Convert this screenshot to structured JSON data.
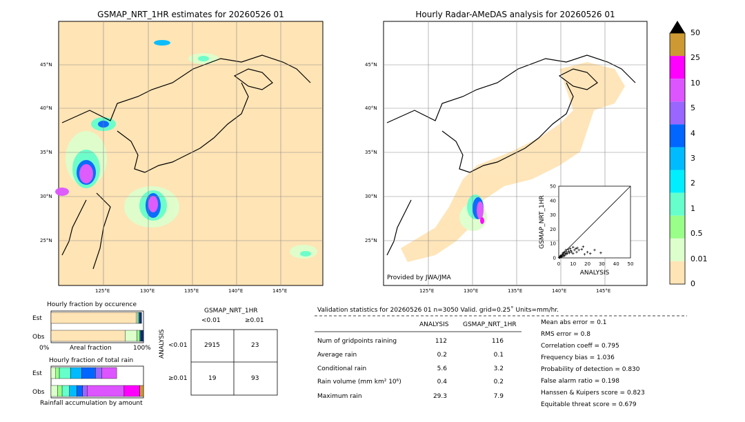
{
  "left_map": {
    "title": "GSMAP_NRT_1HR estimates for 20260526 01",
    "lat_ticks": [
      "45°N",
      "40°N",
      "35°N",
      "30°N",
      "25°N"
    ],
    "lon_ticks": [
      "125°E",
      "130°E",
      "135°E",
      "140°E",
      "145°E"
    ]
  },
  "right_map": {
    "title": "Hourly Radar-AMeDAS analysis for 20260526 01",
    "lat_ticks": [
      "45°N",
      "40°N",
      "35°N",
      "30°N",
      "25°N"
    ],
    "lon_ticks": [
      "125°E",
      "130°E",
      "135°E",
      "140°E",
      "145°E"
    ],
    "credit": "Provided by JWA/JMA"
  },
  "colorbar": {
    "labels": [
      "50",
      "25",
      "10",
      "5",
      "4",
      "3",
      "2",
      "1",
      "0.5",
      "0.01",
      "0"
    ],
    "colors": [
      "#cc9933",
      "#ff00ff",
      "#dd55ff",
      "#9966ff",
      "#0066ff",
      "#00bbff",
      "#00eeff",
      "#66ffcc",
      "#99ff88",
      "#ddffcc",
      "#ffe4b5"
    ],
    "extend_color": "#000000"
  },
  "chart_data": [
    {
      "type": "scatter",
      "title": "",
      "xlabel": "ANALYSIS",
      "ylabel": "GSMAP_NRT_1HR",
      "xlim": [
        0,
        50
      ],
      "ylim": [
        0,
        50
      ],
      "ticks": [
        "0",
        "10",
        "20",
        "30",
        "40",
        "50"
      ],
      "points": [
        [
          0.3,
          0.2
        ],
        [
          0.5,
          0.4
        ],
        [
          0.8,
          0.3
        ],
        [
          1,
          0.9
        ],
        [
          1.2,
          1.5
        ],
        [
          1.5,
          0.6
        ],
        [
          2,
          1.8
        ],
        [
          2.2,
          0.9
        ],
        [
          2.5,
          2.5
        ],
        [
          3,
          1.2
        ],
        [
          3,
          3.5
        ],
        [
          3.5,
          2.2
        ],
        [
          4,
          1.5
        ],
        [
          4,
          4.2
        ],
        [
          4.5,
          3
        ],
        [
          5,
          2.5
        ],
        [
          5,
          5.5
        ],
        [
          5.5,
          4
        ],
        [
          6,
          3
        ],
        [
          6.5,
          6
        ],
        [
          7,
          4.5
        ],
        [
          7.5,
          3.5
        ],
        [
          8,
          6.5
        ],
        [
          8.5,
          5
        ],
        [
          9,
          4
        ],
        [
          10,
          7.5
        ],
        [
          10,
          3
        ],
        [
          11,
          5.5
        ],
        [
          12,
          6.5
        ],
        [
          12.5,
          4
        ],
        [
          13,
          7
        ],
        [
          14,
          5.5
        ],
        [
          16,
          6
        ],
        [
          17,
          7.8
        ],
        [
          18,
          2.5
        ],
        [
          20,
          4
        ],
        [
          22,
          3
        ],
        [
          25,
          5.5
        ],
        [
          29.3,
          3.5
        ]
      ],
      "diagonal": true
    },
    {
      "type": "bar",
      "title": "Hourly fraction by occurence",
      "stacked": true,
      "categories": [
        "Est",
        "Obs"
      ],
      "xlabel": "Areal fraction",
      "x_tick_left": "0%",
      "x_tick_right": "100%",
      "segments": {
        "Est": [
          {
            "color": "#ffe4b5",
            "value": 0.92
          },
          {
            "color": "#ddffcc",
            "value": 0.02
          },
          {
            "color": "#99ff88",
            "value": 0.01
          },
          {
            "color": "#00bbff",
            "value": 0.01
          },
          {
            "color": "#1a2a6c",
            "value": 0.02
          }
        ],
        "Obs": [
          {
            "color": "#ffe4b5",
            "value": 0.8
          },
          {
            "color": "#ddffcc",
            "value": 0.13
          },
          {
            "color": "#99ff88",
            "value": 0.03
          },
          {
            "color": "#00bbff",
            "value": 0.01
          },
          {
            "color": "#1a2a6c",
            "value": 0.03
          }
        ]
      }
    },
    {
      "type": "bar",
      "title": "Hourly fraction of total rain",
      "stacked": true,
      "categories": [
        "Est",
        "Obs"
      ],
      "xlabel": "Rainfall accumulation by amount",
      "segments": {
        "Est": [
          {
            "color": "#ddffcc",
            "value": 0.05
          },
          {
            "color": "#99ff88",
            "value": 0.04
          },
          {
            "color": "#66ffcc",
            "value": 0.12
          },
          {
            "color": "#00bbff",
            "value": 0.12
          },
          {
            "color": "#0066ff",
            "value": 0.15
          },
          {
            "color": "#9966ff",
            "value": 0.07
          },
          {
            "color": "#dd55ff",
            "value": 0.16
          }
        ],
        "Obs": [
          {
            "color": "#ddffcc",
            "value": 0.07
          },
          {
            "color": "#99ff88",
            "value": 0.05
          },
          {
            "color": "#66ffcc",
            "value": 0.08
          },
          {
            "color": "#00bbff",
            "value": 0.08
          },
          {
            "color": "#0066ff",
            "value": 0.06
          },
          {
            "color": "#9966ff",
            "value": 0.05
          },
          {
            "color": "#dd55ff",
            "value": 0.4
          },
          {
            "color": "#ff00ff",
            "value": 0.17
          },
          {
            "color": "#cc9933",
            "value": 0.04
          }
        ]
      }
    },
    {
      "type": "table",
      "title": "GSMAP_NRT_1HR",
      "col_labels": [
        "<0.01",
        "≥0.01"
      ],
      "row_title": "ANALYSIS",
      "row_labels": [
        "<0.01",
        "≥0.01"
      ],
      "cells": [
        [
          "2915",
          "23"
        ],
        [
          "19",
          "93"
        ]
      ]
    },
    {
      "type": "table",
      "title": "Validation statistics for 20260526 01  n=3050 Valid. grid=0.25˚ Units=mm/hr.",
      "columns": [
        "ANALYSIS",
        "GSMAP_NRT_1HR"
      ],
      "rows": [
        {
          "label": "Num of gridpoints raining",
          "analysis": "112",
          "gsmap": "116"
        },
        {
          "label": "Average rain",
          "analysis": "0.2",
          "gsmap": "0.1"
        },
        {
          "label": "Conditional rain",
          "analysis": "5.6",
          "gsmap": "3.2"
        },
        {
          "label": "Rain volume (mm km² 10⁶)",
          "analysis": "0.4",
          "gsmap": "0.2"
        },
        {
          "label": "Maximum rain",
          "analysis": "29.3",
          "gsmap": "7.9"
        }
      ],
      "scores": [
        "Mean abs error =    0.1",
        "RMS error =    0.8",
        "Correlation coeff =  0.795",
        "Frequency bias =  1.036",
        "Probability of detection =  0.830",
        "False alarm ratio =  0.198",
        "Hanssen & Kuipers score =  0.823",
        "Equitable threat score =  0.679"
      ]
    }
  ]
}
